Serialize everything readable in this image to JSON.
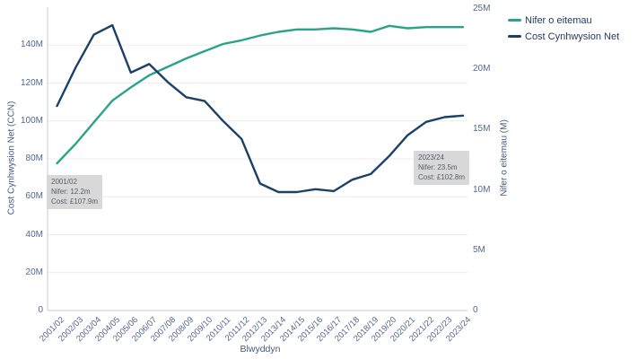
{
  "legend": {
    "items": [
      {
        "label": "Nifer o eitemau",
        "color": "#2aa38c"
      },
      {
        "label": "Cost Cynhwysion Net",
        "color": "#1c4168"
      }
    ]
  },
  "axes": {
    "left": {
      "title": "Cost Cynhwysion Net (CCN)",
      "ticks": [
        {
          "label": "0",
          "value": 0
        },
        {
          "label": "20M",
          "value": 20
        },
        {
          "label": "40M",
          "value": 40
        },
        {
          "label": "60M",
          "value": 60
        },
        {
          "label": "80M",
          "value": 80
        },
        {
          "label": "100M",
          "value": 100
        },
        {
          "label": "120M",
          "value": 120
        },
        {
          "label": "140M",
          "value": 140
        }
      ]
    },
    "right": {
      "title": "Nifer o eitemau (M)",
      "ticks": [
        {
          "label": "0",
          "value": 0
        },
        {
          "label": "5M",
          "value": 5
        },
        {
          "label": "10M",
          "value": 10
        },
        {
          "label": "15M",
          "value": 15
        },
        {
          "label": "20M",
          "value": 20
        },
        {
          "label": "25M",
          "value": 25
        }
      ]
    },
    "x": {
      "title": "Blwyddyn"
    }
  },
  "annotations": [
    {
      "title": "2001/02",
      "line1": "Nifer: 12.2m",
      "line2": "Cost: £107.9m"
    },
    {
      "title": "2023/24",
      "line1": "Nifer: 23.5m",
      "line2": "Cost: £102.8m"
    }
  ],
  "chart_data": {
    "type": "line",
    "title": "",
    "xlabel": "Blwyddyn",
    "ylabel_left": "Cost Cynhwysion Net (CCN)",
    "ylabel_right": "Nifer o eitemau (M)",
    "ylim_left": [
      0,
      160
    ],
    "ylim_right": [
      0,
      25
    ],
    "grid": true,
    "legend_position": "top-right",
    "categories": [
      "2001/02",
      "2002/03",
      "2003/04",
      "2004/05",
      "2005/06",
      "2006/07",
      "2007/08",
      "2008/09",
      "2009/10",
      "2010/11",
      "2011/12",
      "2012/13",
      "2013/14",
      "2014/15",
      "2015/16",
      "2016/17",
      "2017/18",
      "2018/19",
      "2019/20",
      "2020/21",
      "2021/22",
      "2022/23",
      "2023/24"
    ],
    "series": [
      {
        "name": "Nifer o eitemau",
        "id": "nifer-line",
        "axis": "right",
        "color": "#2aa38c",
        "values": [
          12.2,
          13.8,
          15.6,
          17.4,
          18.5,
          19.5,
          20.2,
          20.9,
          21.5,
          22.1,
          22.4,
          22.8,
          23.1,
          23.3,
          23.3,
          23.4,
          23.3,
          23.1,
          23.6,
          23.4,
          23.5,
          23.5,
          23.5
        ]
      },
      {
        "name": "Cost Cynhwysion Net",
        "id": "cost-line",
        "axis": "left",
        "color": "#1c4168",
        "values": [
          107.9,
          128,
          145.5,
          150.5,
          125.5,
          130,
          120.5,
          112.5,
          110.5,
          100,
          90.5,
          67,
          62.5,
          62.5,
          64,
          63,
          69,
          72,
          81.5,
          92.5,
          99.5,
          102,
          102.8
        ]
      }
    ]
  }
}
